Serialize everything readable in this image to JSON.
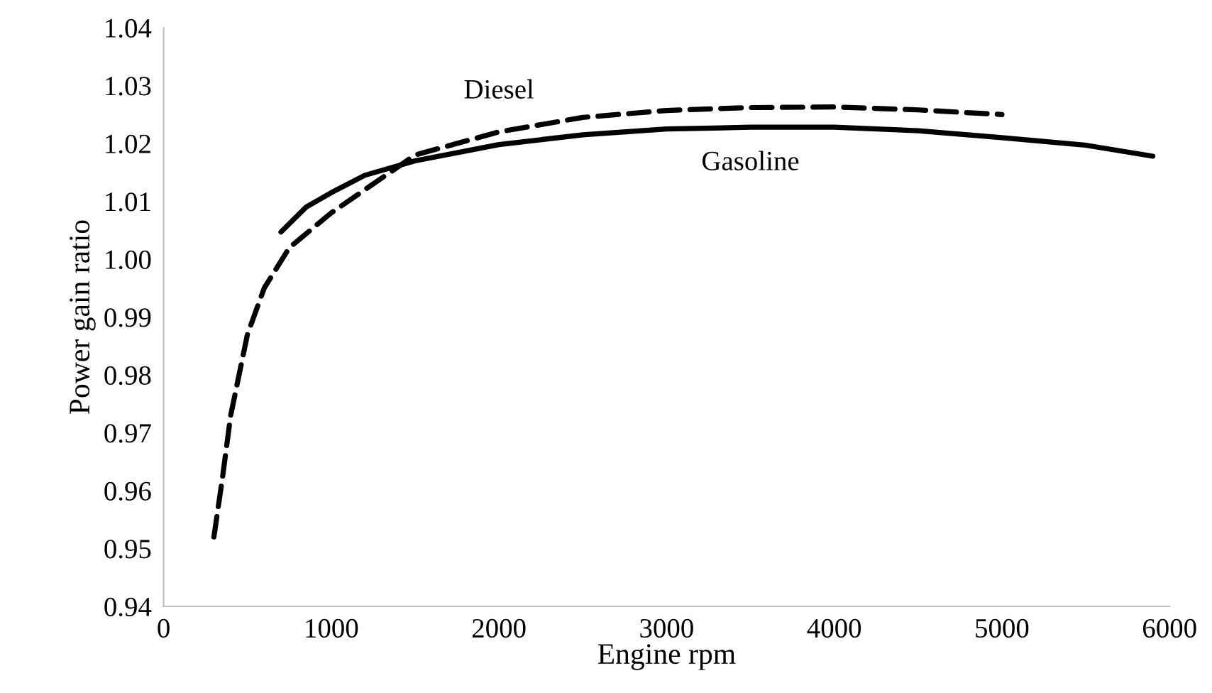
{
  "chart_data": {
    "type": "line",
    "xlabel": "Engine rpm",
    "ylabel": "Power gain ratio",
    "xlim": [
      0,
      6000
    ],
    "xticks": [
      0,
      1000,
      2000,
      3000,
      4000,
      5000,
      6000
    ],
    "ylim": [
      0.94,
      1.04
    ],
    "yticks": [
      0.94,
      0.95,
      0.96,
      0.97,
      0.98,
      0.99,
      {
        "value": 1,
        "label": "1.00"
      },
      1.01,
      1.02,
      1.03,
      1.04
    ],
    "grid": false,
    "legend": false,
    "marker": "none",
    "series": [
      {
        "name": "Diesel",
        "color": "#000000",
        "line_style": "dashed",
        "x": [
          300,
          350,
          400,
          500,
          600,
          750,
          1000,
          1250,
          1500,
          2000,
          2500,
          3000,
          3500,
          4000,
          4500,
          5000
        ],
        "values": [
          0.952,
          0.962,
          0.973,
          0.987,
          0.995,
          1.002,
          1.008,
          1.013,
          1.018,
          1.022,
          1.0245,
          1.0257,
          1.0262,
          1.0263,
          1.0258,
          1.025
        ]
      },
      {
        "name": "Gasoline",
        "color": "#000000",
        "line_style": "solid",
        "x": [
          700,
          850,
          1000,
          1200,
          1500,
          2000,
          2500,
          3000,
          3500,
          4000,
          4500,
          5000,
          5500,
          5900
        ],
        "values": [
          1.0047,
          1.009,
          1.0115,
          1.0145,
          1.017,
          1.0198,
          1.0215,
          1.0225,
          1.0228,
          1.0228,
          1.0222,
          1.021,
          1.0197,
          1.0178
        ]
      }
    ]
  }
}
